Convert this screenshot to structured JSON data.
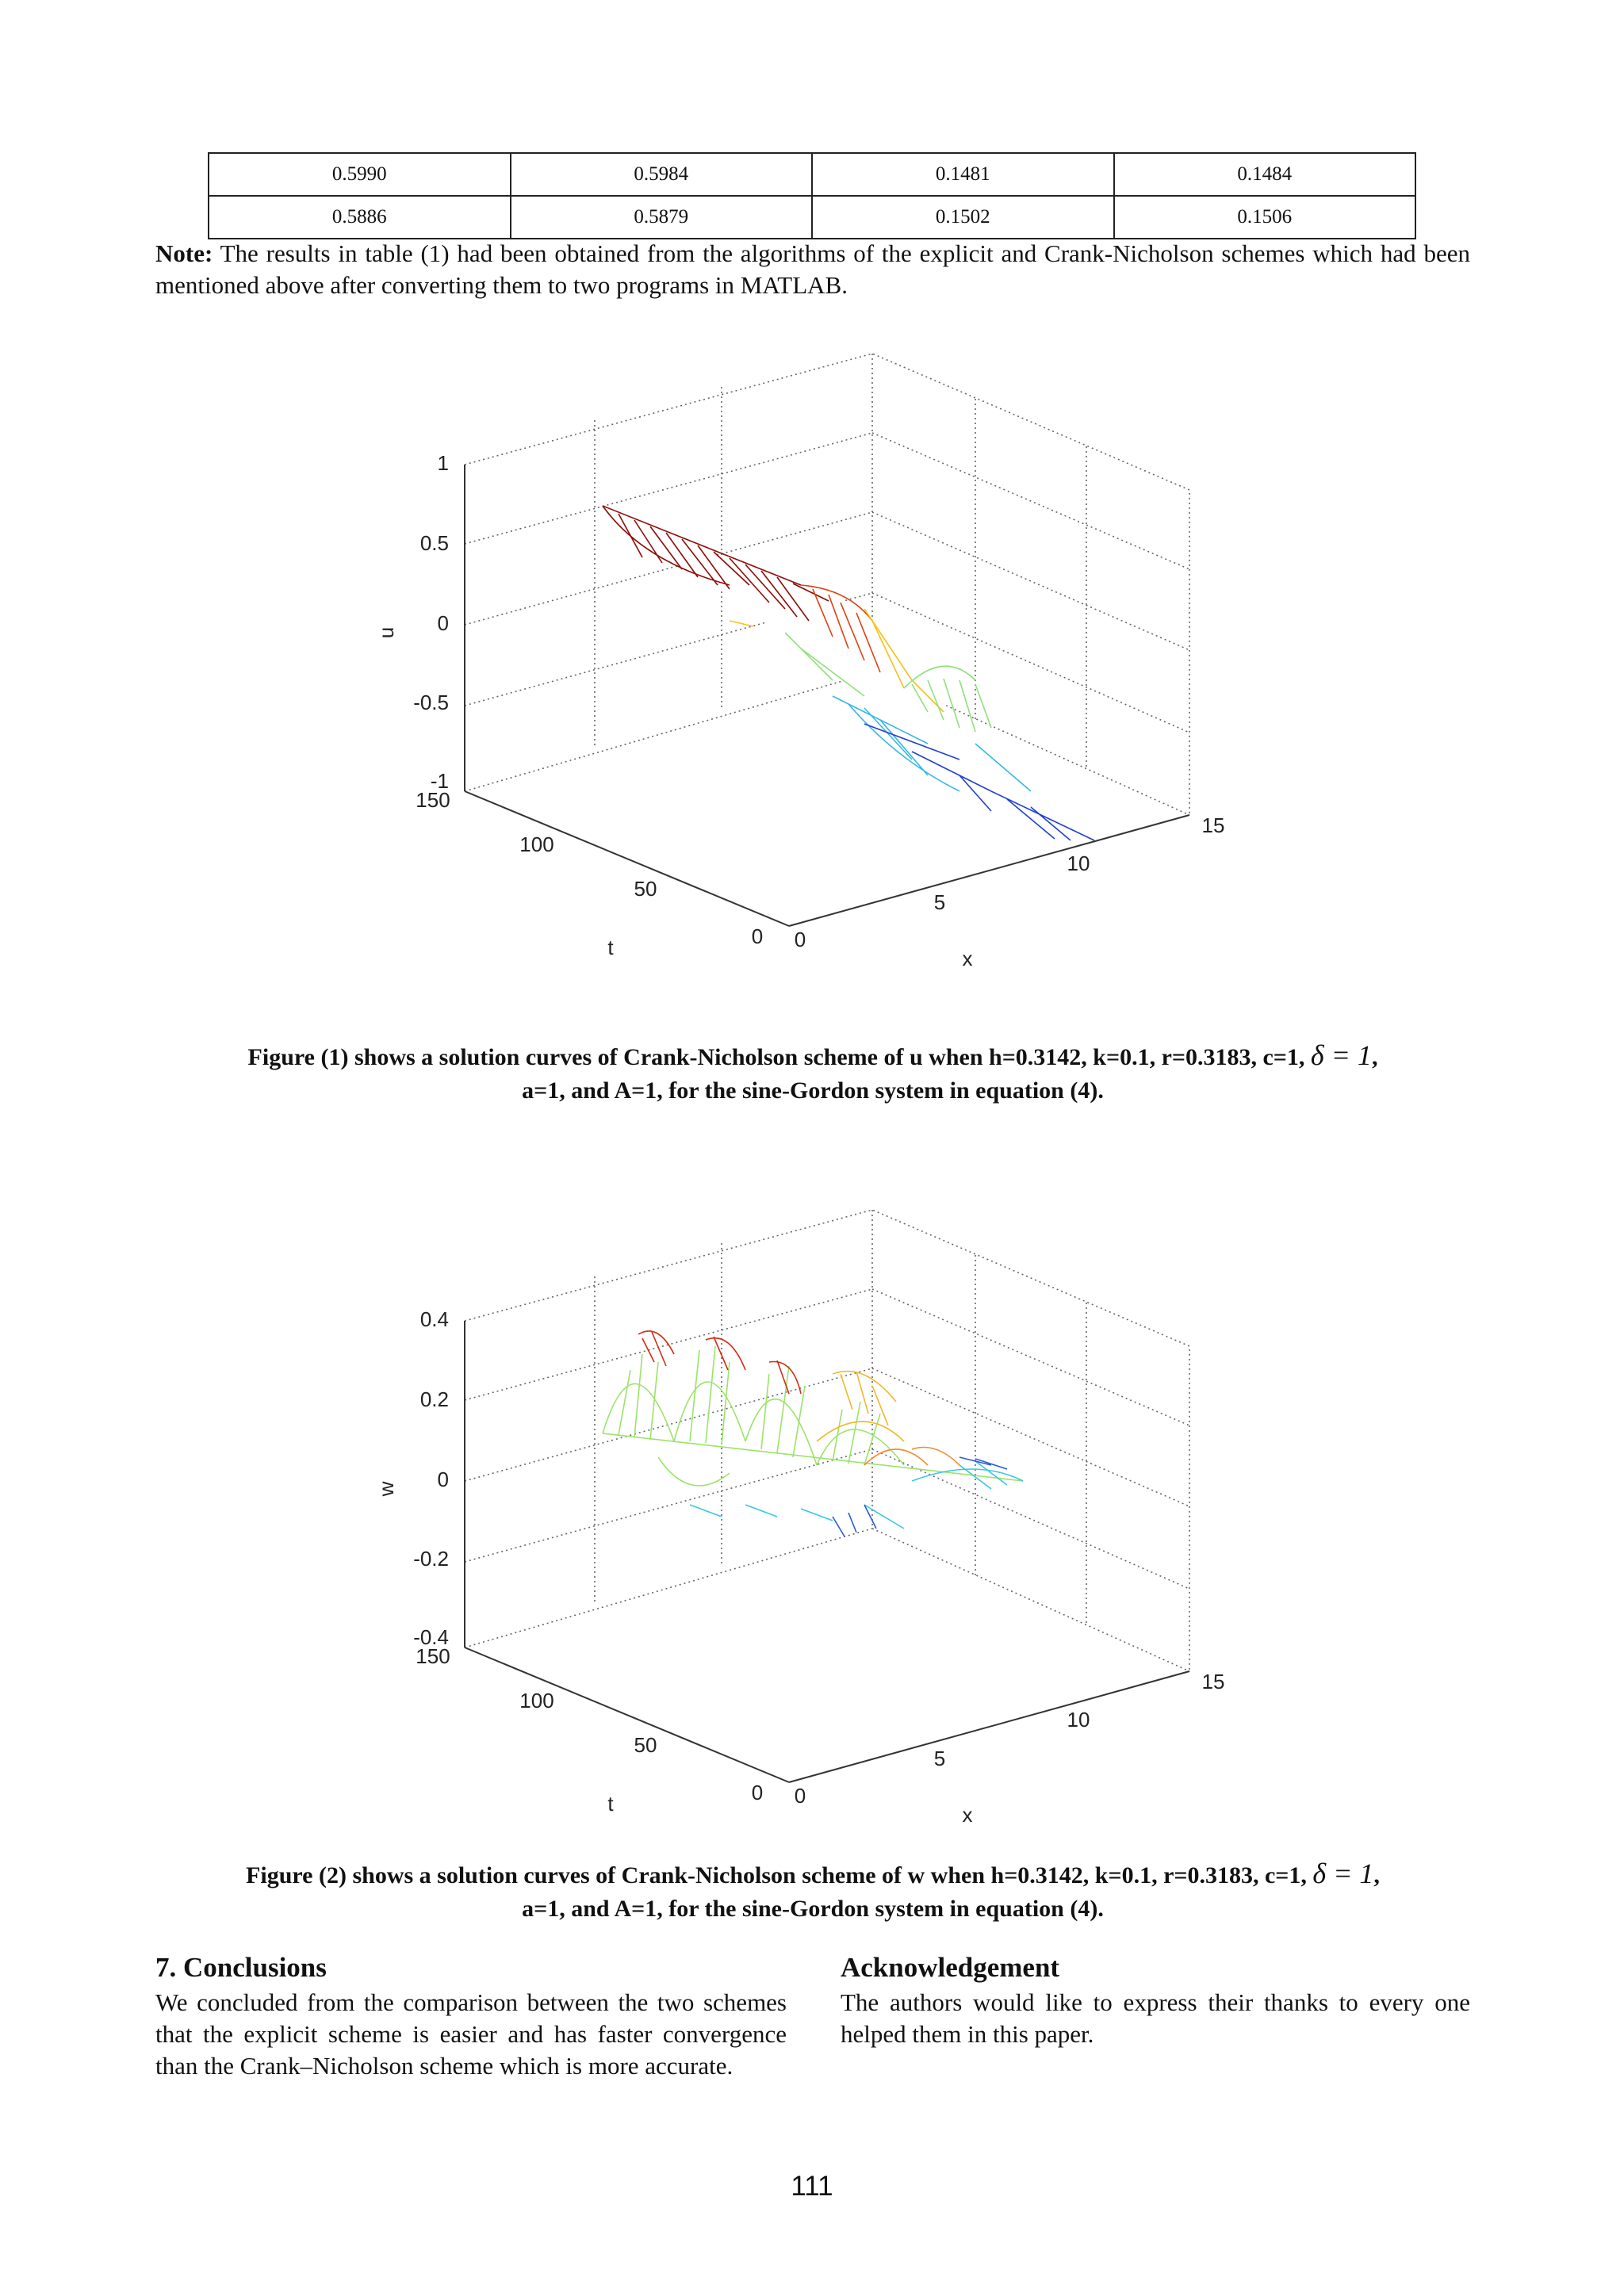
{
  "table": {
    "rows": [
      [
        "0.5990",
        "0.5984",
        "0.1481",
        "0.1484"
      ],
      [
        "0.5886",
        "0.5879",
        "0.1502",
        "0.1506"
      ]
    ]
  },
  "note": {
    "label": "Note:",
    "text": " The results in table (1) had been obtained from the algorithms of the explicit and Crank-Nicholson schemes which had been mentioned above after converting them to two programs in MATLAB."
  },
  "figures": [
    {
      "zlabel": "u",
      "xlabel": "x",
      "tlabel": "t",
      "z_ticks": [
        "1",
        "0.5",
        "0",
        "-0.5",
        "-1"
      ],
      "t_ticks": [
        "150",
        "100",
        "50",
        "0"
      ],
      "x_ticks": [
        "0",
        "5",
        "10",
        "15"
      ],
      "caption_line1": "Figure (1) shows a solution curves of Crank-Nicholson scheme of u when h=0.3142,  k=0.1, r=0.3183, c=1,",
      "caption_delta": "δ = 1",
      "caption_comma": ",",
      "caption_line2": "a=1, and A=1, for the sine-Gordon system in equation (4)."
    },
    {
      "zlabel": "w",
      "xlabel": "x",
      "tlabel": "t",
      "z_ticks": [
        "0.4",
        "0.2",
        "0",
        "-0.2",
        "-0.4"
      ],
      "t_ticks": [
        "150",
        "100",
        "50",
        "0"
      ],
      "x_ticks": [
        "0",
        "5",
        "10",
        "15"
      ],
      "caption_line1": "Figure (2) shows a solution curves of Crank-Nicholson scheme of w when h=0.3142,  k=0.1, r=0.3183, c=1,",
      "caption_delta": "δ = 1",
      "caption_comma": ",",
      "caption_line2": "a=1, and A=1, for the sine-Gordon system in equation (4)."
    }
  ],
  "conclusions": {
    "title": "7. Conclusions",
    "text": "We concluded from the comparison between the two schemes that the explicit scheme is easier and has faster convergence than the Crank–Nicholson scheme which is more accurate."
  },
  "acknowledgement": {
    "title": "Acknowledgement",
    "text": "The authors would like to express their thanks to every one  helped them  in this paper."
  },
  "page_number": "111",
  "colors": {
    "text": "#111111",
    "grid": "#555555"
  }
}
